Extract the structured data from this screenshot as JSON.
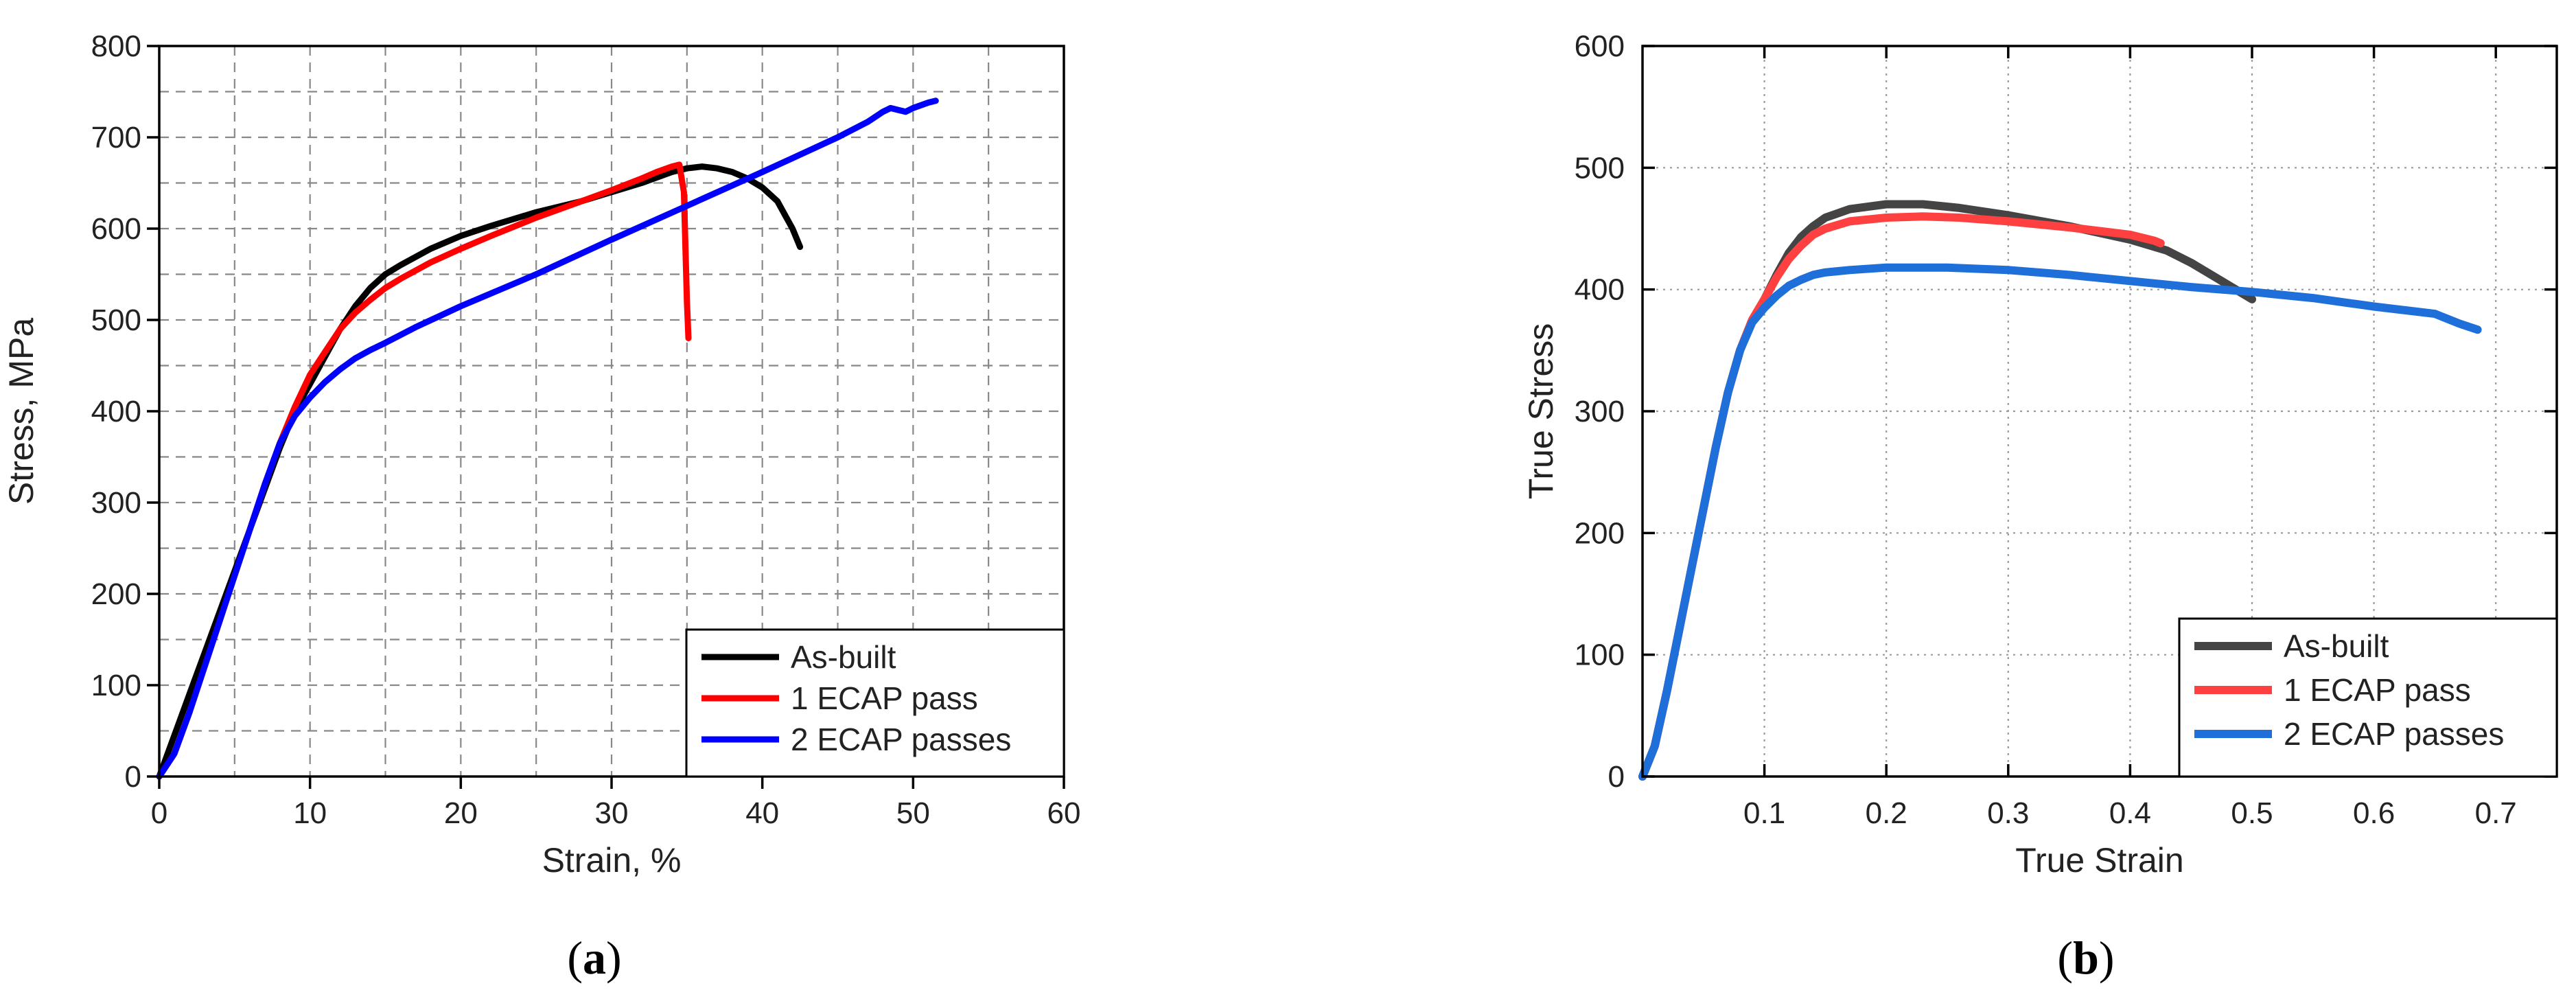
{
  "chart_data": [
    {
      "type": "line",
      "panel_label": {
        "open": "(",
        "letter": "a",
        "close": ")"
      },
      "xlabel": "Strain, %",
      "ylabel": "Stress, MPa",
      "xlim": [
        0,
        60
      ],
      "ylim": [
        0,
        800
      ],
      "xticks": [
        0,
        10,
        20,
        30,
        40,
        50,
        60
      ],
      "yticks": [
        0,
        100,
        200,
        300,
        400,
        500,
        600,
        700,
        800
      ],
      "grid": true,
      "grid_style": "dashed",
      "legend_position": "bottom-right",
      "series": [
        {
          "name": "As-built",
          "color": "#000000",
          "x": [
            0,
            1,
            2,
            3,
            4,
            5,
            6,
            7,
            8,
            9,
            10,
            11,
            12,
            13,
            14,
            15,
            16,
            18,
            20,
            22,
            25,
            28,
            30,
            32,
            34,
            35,
            36,
            37,
            38,
            39,
            40,
            41,
            42,
            42.5
          ],
          "y": [
            0,
            45,
            90,
            135,
            180,
            225,
            270,
            315,
            360,
            400,
            430,
            460,
            490,
            515,
            535,
            550,
            560,
            578,
            592,
            603,
            618,
            630,
            640,
            650,
            662,
            666,
            668,
            666,
            662,
            655,
            645,
            630,
            600,
            580
          ]
        },
        {
          "name": "1 ECAP pass",
          "color": "#ff0000",
          "x": [
            0,
            1,
            2,
            3,
            4,
            5,
            6,
            7,
            8,
            9,
            10,
            11,
            12,
            13,
            14,
            15,
            16,
            18,
            20,
            22,
            25,
            28,
            30,
            32,
            33,
            34,
            34.5,
            34.8,
            35,
            35.1
          ],
          "y": [
            0,
            25,
            70,
            120,
            170,
            220,
            270,
            320,
            365,
            405,
            440,
            465,
            490,
            508,
            522,
            535,
            545,
            563,
            578,
            592,
            612,
            630,
            642,
            655,
            662,
            668,
            670,
            640,
            520,
            480
          ]
        },
        {
          "name": "2 ECAP passes",
          "color": "#0000ff",
          "x": [
            0,
            1,
            2,
            3,
            4,
            5,
            6,
            7,
            8,
            9,
            10,
            11,
            12,
            13,
            14,
            15,
            17,
            20,
            25,
            30,
            35,
            40,
            45,
            47,
            48,
            48.5,
            49,
            49.5,
            50,
            51,
            51.5
          ],
          "y": [
            0,
            25,
            70,
            120,
            170,
            220,
            270,
            320,
            365,
            395,
            415,
            432,
            446,
            458,
            467,
            475,
            492,
            515,
            550,
            588,
            625,
            662,
            700,
            717,
            728,
            732,
            730,
            728,
            732,
            738,
            740
          ]
        }
      ]
    },
    {
      "type": "line",
      "panel_label": {
        "open": "(",
        "letter": "b",
        "close": ")"
      },
      "xlabel": "True Strain",
      "ylabel": "True Stress",
      "xlim": [
        0,
        0.75
      ],
      "ylim": [
        0,
        600
      ],
      "xticks": [
        0.1,
        0.2,
        0.3,
        0.4,
        0.5,
        0.6,
        0.7
      ],
      "yticks": [
        0,
        100,
        200,
        300,
        400,
        500,
        600
      ],
      "grid": true,
      "grid_style": "dotted",
      "legend_position": "bottom-right",
      "series": [
        {
          "name": "As-built",
          "color": "#444444",
          "x": [
            0,
            0.01,
            0.02,
            0.03,
            0.04,
            0.05,
            0.06,
            0.07,
            0.08,
            0.09,
            0.1,
            0.11,
            0.12,
            0.13,
            0.14,
            0.15,
            0.17,
            0.2,
            0.23,
            0.26,
            0.3,
            0.35,
            0.4,
            0.43,
            0.45,
            0.47,
            0.49,
            0.5
          ],
          "y": [
            0,
            25,
            70,
            120,
            170,
            220,
            270,
            315,
            350,
            375,
            392,
            412,
            430,
            443,
            452,
            459,
            466,
            470,
            470,
            467,
            461,
            452,
            441,
            432,
            422,
            410,
            398,
            392
          ]
        },
        {
          "name": "1 ECAP pass",
          "color": "#ff4040",
          "x": [
            0,
            0.01,
            0.02,
            0.03,
            0.04,
            0.05,
            0.06,
            0.07,
            0.08,
            0.09,
            0.1,
            0.11,
            0.12,
            0.13,
            0.14,
            0.15,
            0.17,
            0.2,
            0.23,
            0.26,
            0.3,
            0.35,
            0.4,
            0.42,
            0.425
          ],
          "y": [
            0,
            25,
            70,
            120,
            170,
            220,
            270,
            315,
            350,
            375,
            392,
            410,
            425,
            436,
            445,
            450,
            456,
            459,
            460,
            459,
            456,
            451,
            445,
            440,
            438
          ]
        },
        {
          "name": "2 ECAP passes",
          "color": "#1e6fd9",
          "x": [
            0,
            0.01,
            0.02,
            0.03,
            0.04,
            0.05,
            0.06,
            0.07,
            0.08,
            0.09,
            0.1,
            0.11,
            0.12,
            0.13,
            0.14,
            0.15,
            0.17,
            0.2,
            0.25,
            0.3,
            0.35,
            0.4,
            0.45,
            0.5,
            0.55,
            0.6,
            0.65,
            0.66,
            0.67,
            0.685
          ],
          "y": [
            0,
            25,
            70,
            120,
            170,
            220,
            270,
            315,
            350,
            373,
            385,
            395,
            403,
            408,
            412,
            414,
            416,
            418,
            418,
            416,
            412,
            407,
            402,
            398,
            393,
            386,
            380,
            376,
            372,
            367
          ]
        }
      ]
    }
  ]
}
